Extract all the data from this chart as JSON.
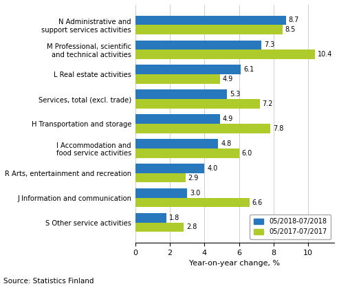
{
  "categories": [
    "S Other service activities",
    "J Information and communication",
    "R Arts, entertainment and recreation",
    "I Accommodation and\nfood service activities",
    "H Transportation and storage",
    "Services, total (excl. trade)",
    "L Real estate activities",
    "M Professional, scientific\nand technical activities",
    "N Administrative and\nsupport services activities"
  ],
  "values_2018": [
    1.8,
    3.0,
    4.0,
    4.8,
    4.9,
    5.3,
    6.1,
    7.3,
    8.7
  ],
  "values_2017": [
    2.8,
    6.6,
    2.9,
    6.0,
    7.8,
    7.2,
    4.9,
    10.4,
    8.5
  ],
  "color_2018": "#2878BE",
  "color_2017": "#AECB2C",
  "legend_2018": "05/2018-07/2018",
  "legend_2017": "05/2017-07/2017",
  "xlabel": "Year-on-year change, %",
  "source": "Source: Statistics Finland",
  "xlim": [
    0,
    11.5
  ],
  "xticks": [
    0,
    2,
    4,
    6,
    8,
    10
  ]
}
